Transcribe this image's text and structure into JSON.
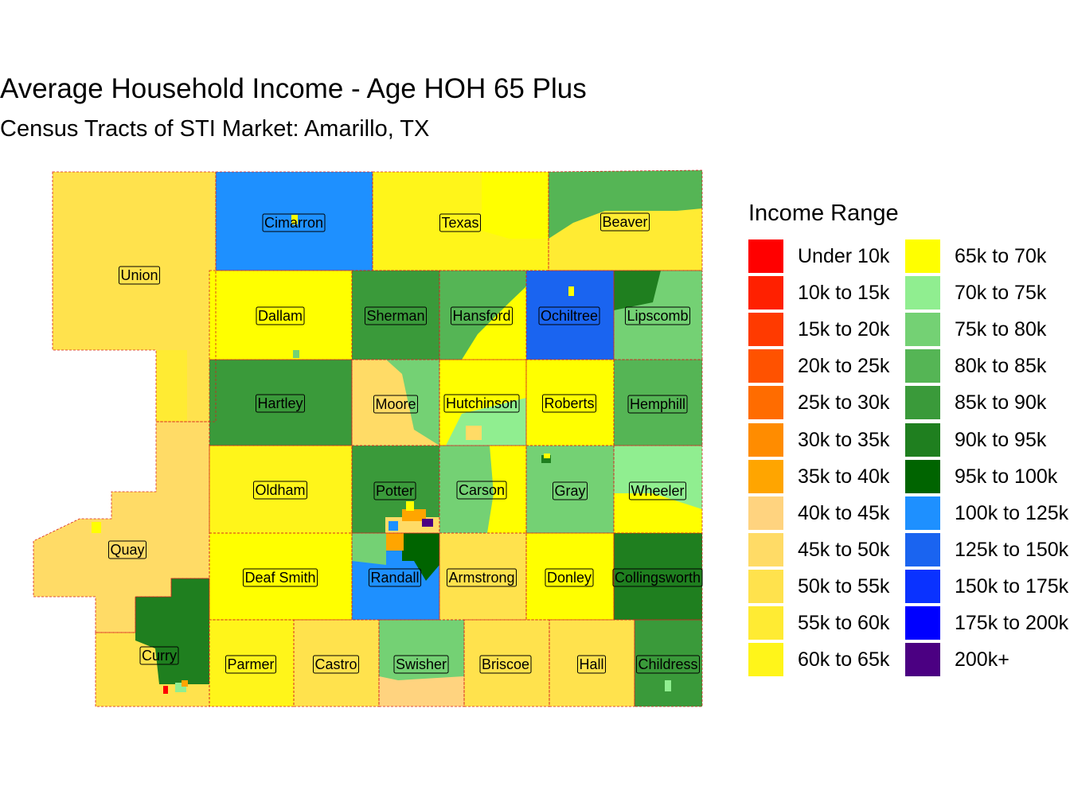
{
  "title": "Average Household Income - Age HOH 65 Plus",
  "subtitle": "Census Tracts of STI Market: Amarillo, TX",
  "legend": {
    "title": "Income Range",
    "items": [
      {
        "label": "Under 10k",
        "color": "#FF0000"
      },
      {
        "label": "10k to 15k",
        "color": "#FF2000"
      },
      {
        "label": "15k to 20k",
        "color": "#FF3A00"
      },
      {
        "label": "20k to 25k",
        "color": "#FF5200"
      },
      {
        "label": "25k to 30k",
        "color": "#FF6C00"
      },
      {
        "label": "30k to 35k",
        "color": "#FF8C00"
      },
      {
        "label": "35k to 40k",
        "color": "#FFA500"
      },
      {
        "label": "40k to 45k",
        "color": "#FFD37F"
      },
      {
        "label": "45k to 50k",
        "color": "#FFDB66"
      },
      {
        "label": "50k to 55k",
        "color": "#FFE24D"
      },
      {
        "label": "55k to 60k",
        "color": "#FFEB33"
      },
      {
        "label": "60k to 65k",
        "color": "#FFF51A"
      },
      {
        "label": "65k to 70k",
        "color": "#FFFF00"
      },
      {
        "label": "70k to 75k",
        "color": "#90EE90"
      },
      {
        "label": "75k to 80k",
        "color": "#74D174"
      },
      {
        "label": "80k to 85k",
        "color": "#55B555"
      },
      {
        "label": "85k to 90k",
        "color": "#3A9A3A"
      },
      {
        "label": "90k to 95k",
        "color": "#1F7F1F"
      },
      {
        "label": "95k to 100k",
        "color": "#006400"
      },
      {
        "label": "100k to 125k",
        "color": "#1E90FF"
      },
      {
        "label": "125k to 150k",
        "color": "#1A64F0"
      },
      {
        "label": "150k to 175k",
        "color": "#0A32FF"
      },
      {
        "label": "175k to 200k",
        "color": "#0000FF"
      },
      {
        "label": "200k+",
        "color": "#4B0082"
      }
    ]
  },
  "counties": [
    {
      "name": "Union",
      "color": "#FFE24D"
    },
    {
      "name": "Quay",
      "color": "#FFDB66"
    },
    {
      "name": "Curry",
      "color": "#FFE24D"
    },
    {
      "name": "Cimarron",
      "color": "#1E90FF"
    },
    {
      "name": "Texas",
      "color": "#FFF51A"
    },
    {
      "name": "Beaver",
      "color": "#55B555"
    },
    {
      "name": "Dallam",
      "color": "#FFFF00"
    },
    {
      "name": "Sherman",
      "color": "#3A9A3A"
    },
    {
      "name": "Hansford",
      "color": "#55B555"
    },
    {
      "name": "Ochiltree",
      "color": "#1A64F0"
    },
    {
      "name": "Lipscomb",
      "color": "#74D174"
    },
    {
      "name": "Hartley",
      "color": "#3A9A3A"
    },
    {
      "name": "Moore",
      "color": "#FFDB66"
    },
    {
      "name": "Hutchinson",
      "color": "#FFFF00"
    },
    {
      "name": "Roberts",
      "color": "#FFFF00"
    },
    {
      "name": "Hemphill",
      "color": "#55B555"
    },
    {
      "name": "Oldham",
      "color": "#FFF51A"
    },
    {
      "name": "Potter",
      "color": "#3A9A3A"
    },
    {
      "name": "Carson",
      "color": "#74D174"
    },
    {
      "name": "Gray",
      "color": "#74D174"
    },
    {
      "name": "Wheeler",
      "color": "#90EE90"
    },
    {
      "name": "Deaf Smith",
      "color": "#FFFF00"
    },
    {
      "name": "Randall",
      "color": "#1E90FF"
    },
    {
      "name": "Armstrong",
      "color": "#FFE24D"
    },
    {
      "name": "Donley",
      "color": "#FFFF00"
    },
    {
      "name": "Collingsworth",
      "color": "#1F7F1F"
    },
    {
      "name": "Parmer",
      "color": "#FFF51A"
    },
    {
      "name": "Castro",
      "color": "#FFE24D"
    },
    {
      "name": "Swisher",
      "color": "#74D174"
    },
    {
      "name": "Briscoe",
      "color": "#FFE24D"
    },
    {
      "name": "Hall",
      "color": "#FFE24D"
    },
    {
      "name": "Childress",
      "color": "#3A9A3A"
    }
  ]
}
